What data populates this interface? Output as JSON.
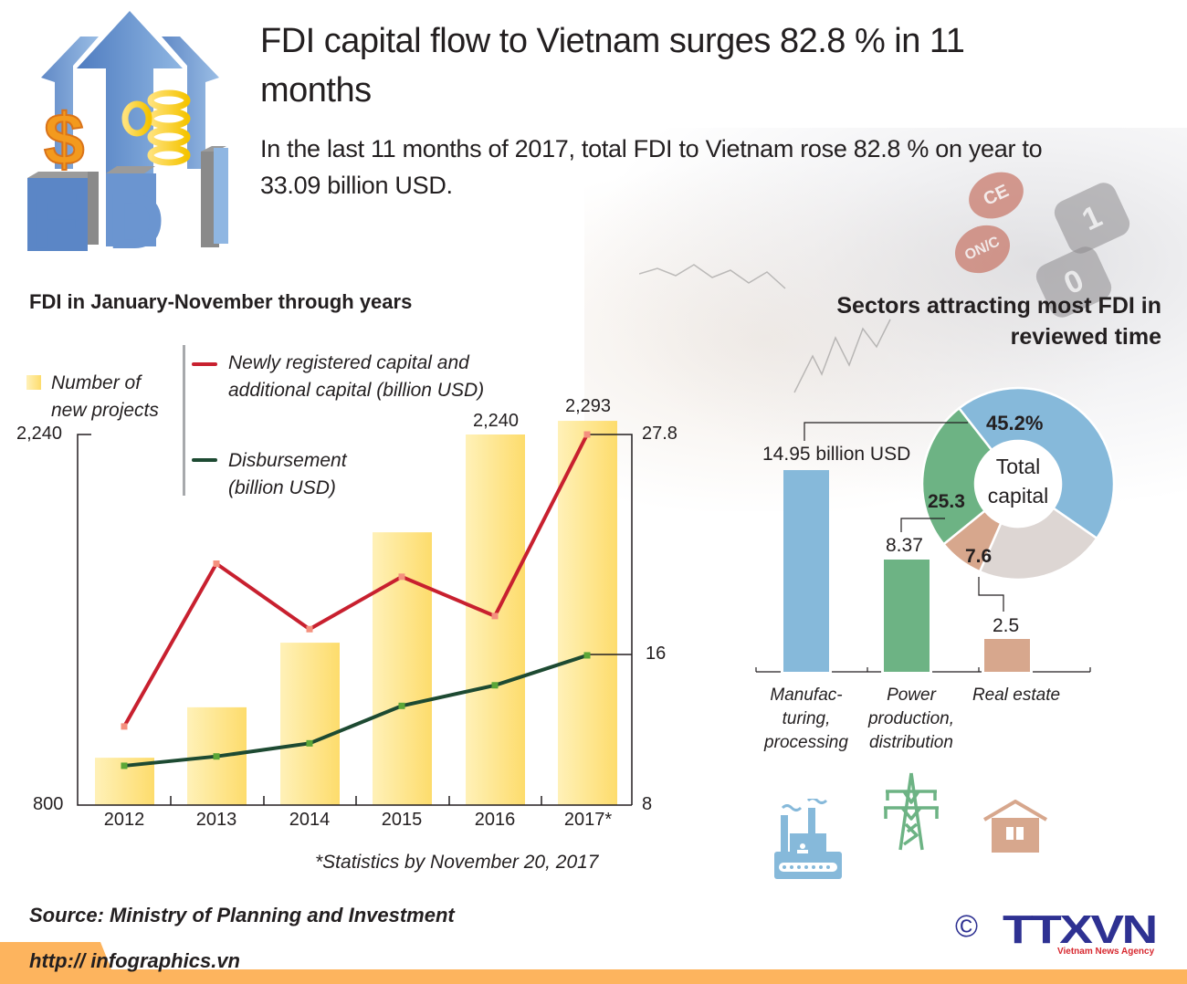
{
  "header": {
    "title": "FDI capital flow to Vietnam surges 82.8 % in 11 months",
    "subtitle": "In the last 11 months of 2017, total FDI to Vietnam rose 82.8 % on year to 33.09 billion USD.",
    "logo_text": "FDI"
  },
  "left_chart": {
    "title": "FDI in January-November through years",
    "legend": {
      "bars": "Number of new projects",
      "bars_line1": "Number of",
      "bars_line2": "new projects",
      "red_line1": "Newly registered capital and",
      "red_line2": "additional capital (billion USD)",
      "green_line1": "Disbursement",
      "green_line2": "(billion USD)"
    },
    "left_axis": {
      "top": "2,240",
      "bottom": "800"
    },
    "right_axis": {
      "top": "27.8",
      "mid": "16",
      "bottom": "8"
    },
    "bar_value_labels": {
      "2016": "2,240",
      "2017": "2,293"
    },
    "years": [
      "2012",
      "2013",
      "2014",
      "2015",
      "2016",
      "2017*"
    ],
    "footnote": "*Statistics by November 20, 2017"
  },
  "right_chart": {
    "title_line1": "Sectors attracting most FDI in",
    "title_line2": "reviewed time",
    "donut_center_line1": "Total",
    "donut_center_line2": "capital",
    "sectors": [
      {
        "name_lines": [
          "Manufac-",
          "turing,",
          "processing"
        ],
        "value_label": "14.95 billion USD",
        "share_label": "45.2%",
        "color": "#86b9da",
        "icon": "factory-icon"
      },
      {
        "name_lines": [
          "Power",
          "production,",
          "distribution"
        ],
        "value_label": "8.37",
        "share_label": "25.3",
        "color": "#6db384",
        "icon": "power-tower-icon"
      },
      {
        "name_lines": [
          "Real estate"
        ],
        "value_label": "2.5",
        "share_label": "7.6",
        "color": "#d7a78d",
        "icon": "house-icon"
      }
    ],
    "other_color": "#ddd6d3"
  },
  "footer": {
    "source": "Source: Ministry of Planning and Investment",
    "url": "http:// infographics.vn",
    "copyright": "©",
    "agency_logo": "TTXVN",
    "agency_name": "Vietnam News Agency"
  },
  "colors": {
    "bar_light": "#fff1b8",
    "bar_dark": "#fddc6c",
    "red_line": "#c8202f",
    "red_marker": "#f4907e",
    "green_line": "#1d4a32",
    "green_marker": "#5ba637",
    "footer_orange": "#fdb45e",
    "agency_blue": "#2e3192"
  },
  "chart_data": [
    {
      "type": "bar+line",
      "title": "FDI in January-November through years",
      "categories": [
        "2012",
        "2013",
        "2014",
        "2015",
        "2016",
        "2017*"
      ],
      "series": [
        {
          "name": "Number of new projects",
          "type": "bar",
          "axis": "left",
          "values": [
            984,
            1180,
            1431,
            1860,
            2240,
            2293
          ]
        },
        {
          "name": "Newly registered capital and additional capital (billion USD)",
          "type": "line",
          "axis": "right",
          "values": [
            12.2,
            20.9,
            17.4,
            20.2,
            18.1,
            27.8
          ]
        },
        {
          "name": "Disbursement (billion USD)",
          "type": "line",
          "axis": "right",
          "values": [
            10.1,
            10.6,
            11.3,
            13.3,
            14.4,
            16.0
          ]
        }
      ],
      "left_axis": {
        "ticks": [
          800,
          2240
        ],
        "ylim": [
          800,
          2240
        ]
      },
      "right_axis": {
        "ticks": [
          8,
          16,
          27.8
        ],
        "ylim": [
          8,
          27.8
        ]
      },
      "labeled_values": {
        "bars": {
          "2016": 2240,
          "2017*": 2293
        },
        "red_2017": 27.8,
        "green_2017": 16
      },
      "xlabel": "",
      "grid": false,
      "legend_position": "top-left",
      "annotation": "*Statistics by November 20, 2017"
    },
    {
      "type": "bar",
      "title": "Sectors attracting most FDI in reviewed time",
      "categories": [
        "Manufacturing, processing",
        "Power production, distribution",
        "Real estate"
      ],
      "values": [
        14.95,
        8.37,
        2.5
      ],
      "ylabel": "billion USD"
    },
    {
      "type": "pie",
      "title": "Total capital",
      "style": "donut",
      "categories": [
        "Manufacturing, processing",
        "Power production, distribution",
        "Real estate",
        "Other"
      ],
      "values": [
        45.2,
        25.3,
        7.6,
        21.9
      ],
      "unit": "%"
    }
  ]
}
